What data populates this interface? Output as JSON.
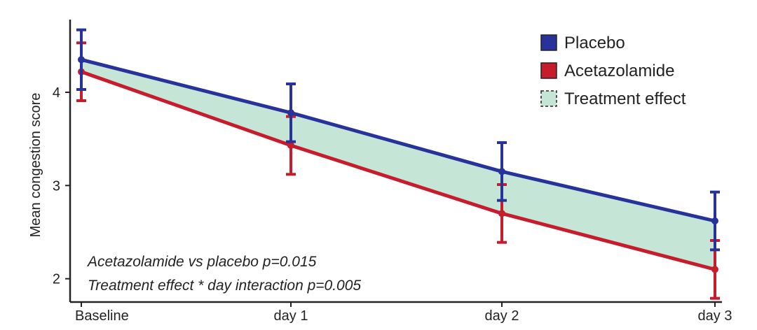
{
  "chart_data": {
    "type": "line",
    "categories": [
      "Baseline",
      "day 1",
      "day 2",
      "day 3"
    ],
    "series": [
      {
        "name": "Placebo",
        "color": "#27329a",
        "values": [
          4.35,
          3.78,
          3.15,
          2.62
        ],
        "error_low": [
          4.03,
          3.47,
          2.84,
          2.31
        ],
        "error_high": [
          4.67,
          4.09,
          3.46,
          2.93
        ]
      },
      {
        "name": "Acetazolamide",
        "color": "#c71c2b",
        "values": [
          4.22,
          3.43,
          2.7,
          2.1
        ],
        "error_low": [
          3.91,
          3.12,
          2.39,
          1.79
        ],
        "error_high": [
          4.53,
          3.74,
          3.01,
          2.41
        ]
      }
    ],
    "band": {
      "name": "Treatment effect",
      "color": "#c5e6d6",
      "between": [
        "Placebo",
        "Acetazolamide"
      ]
    },
    "xlabel": "",
    "ylabel": "Mean congestion score",
    "yticks": [
      2,
      3,
      4
    ],
    "ylim": [
      1.75,
      4.78
    ],
    "grid": false,
    "legend_position": "top-right",
    "annotations": [
      "Acetazolamide vs placebo p=0.015",
      "Treatment effect * day interaction p=0.005"
    ]
  }
}
